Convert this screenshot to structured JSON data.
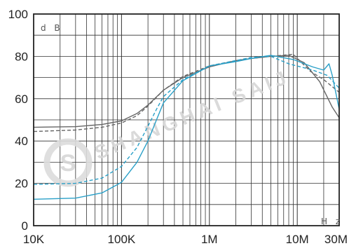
{
  "chart_data": {
    "type": "line",
    "xscale": "log",
    "xlim": [
      10000,
      30000000
    ],
    "ylim": [
      0,
      100
    ],
    "grid": true,
    "x_unit_label": "H z",
    "y_unit_label": "d B",
    "x_ticks": [
      {
        "value": 10000,
        "label": "10K"
      },
      {
        "value": 100000,
        "label": "100K"
      },
      {
        "value": 1000000,
        "label": "1M"
      },
      {
        "value": 10000000,
        "label": "10M"
      },
      {
        "value": 30000000,
        "label": "30M"
      }
    ],
    "y_ticks": [
      0,
      20,
      40,
      60,
      80,
      100
    ],
    "series": [
      {
        "color": "#666666",
        "dashed": false,
        "width": 1.4,
        "points": [
          [
            10000,
            46.5
          ],
          [
            30000,
            46.8
          ],
          [
            60000,
            47.8
          ],
          [
            100000,
            49.5
          ],
          [
            150000,
            53
          ],
          [
            200000,
            57
          ],
          [
            300000,
            64
          ],
          [
            500000,
            70
          ],
          [
            1000000,
            75
          ],
          [
            2000000,
            78
          ],
          [
            3000000,
            79
          ],
          [
            5000000,
            80
          ],
          [
            8000000,
            80.5
          ],
          [
            12000000,
            77
          ],
          [
            18000000,
            68
          ],
          [
            25000000,
            56
          ],
          [
            30000000,
            51
          ]
        ]
      },
      {
        "color": "#666666",
        "dashed": true,
        "width": 1.4,
        "points": [
          [
            10000,
            44.5
          ],
          [
            30000,
            45.2
          ],
          [
            60000,
            46.5
          ],
          [
            100000,
            48.5
          ],
          [
            150000,
            52
          ],
          [
            200000,
            56.5
          ],
          [
            300000,
            64
          ],
          [
            500000,
            70.5
          ],
          [
            1000000,
            75.5
          ],
          [
            2000000,
            78
          ],
          [
            3000000,
            79
          ],
          [
            5000000,
            80
          ],
          [
            9000000,
            81
          ],
          [
            14000000,
            73
          ],
          [
            20000000,
            69
          ],
          [
            30000000,
            63
          ]
        ]
      },
      {
        "color": "#2aa0c8",
        "dashed": true,
        "width": 1.4,
        "points": [
          [
            10000,
            19.5
          ],
          [
            30000,
            20
          ],
          [
            60000,
            22.5
          ],
          [
            100000,
            28
          ],
          [
            150000,
            37
          ],
          [
            200000,
            47
          ],
          [
            250000,
            55
          ],
          [
            300000,
            61
          ],
          [
            500000,
            69
          ],
          [
            1000000,
            75.5
          ],
          [
            2000000,
            78
          ],
          [
            3000000,
            79.5
          ],
          [
            5000000,
            80
          ],
          [
            8000000,
            76.5
          ],
          [
            15000000,
            73.5
          ],
          [
            22000000,
            71
          ],
          [
            30000000,
            65
          ]
        ]
      },
      {
        "color": "#2aa0c8",
        "dashed": false,
        "width": 1.4,
        "points": [
          [
            10000,
            12.5
          ],
          [
            30000,
            13
          ],
          [
            60000,
            15.5
          ],
          [
            100000,
            20.5
          ],
          [
            150000,
            30
          ],
          [
            200000,
            40
          ],
          [
            250000,
            50
          ],
          [
            300000,
            58
          ],
          [
            500000,
            68.5
          ],
          [
            1000000,
            75.5
          ],
          [
            2000000,
            77.5
          ],
          [
            3000000,
            79
          ],
          [
            5000000,
            80.5
          ],
          [
            9000000,
            78.5
          ],
          [
            15000000,
            75
          ],
          [
            20000000,
            73.5
          ],
          [
            23000000,
            76.5
          ],
          [
            25000000,
            71
          ],
          [
            30000000,
            55
          ]
        ]
      }
    ]
  }
}
